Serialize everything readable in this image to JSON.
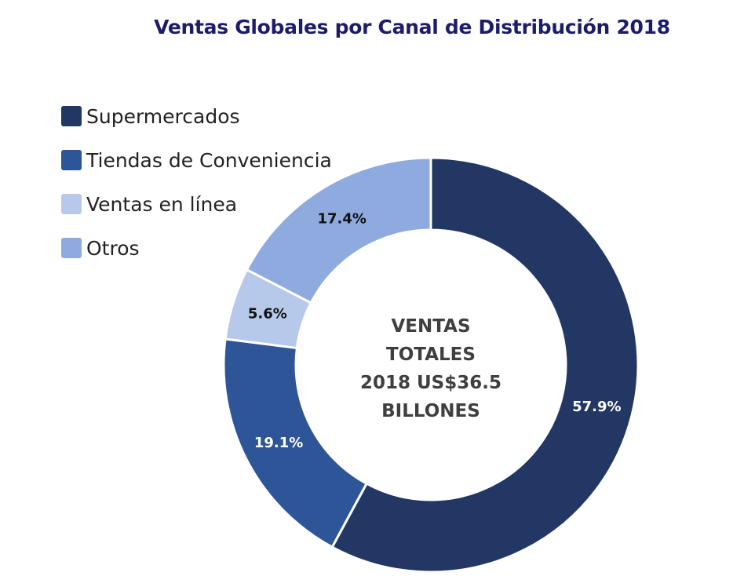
{
  "chart_data": {
    "type": "pie",
    "title": "Ventas Globales por Canal de Distribución 2018",
    "categories": [
      "Supermercados",
      "Tiendas de Conveniencia",
      "Ventas en línea",
      "Otros"
    ],
    "values": [
      57.9,
      19.1,
      5.6,
      17.4
    ],
    "value_labels": [
      "57.9%",
      "19.1%",
      "5.6%",
      "17.4%"
    ],
    "colors": [
      "#223763",
      "#2e5597",
      "#b6c9ea",
      "#8eaadf"
    ],
    "label_colors": [
      "#ffffff",
      "#ffffff",
      "#111111",
      "#111111"
    ],
    "legend_position": "top-left",
    "center_label": {
      "line1": "VENTAS",
      "line2": "TOTALES",
      "line3": "2018 US$36.5",
      "line4": "BILLONES"
    }
  }
}
